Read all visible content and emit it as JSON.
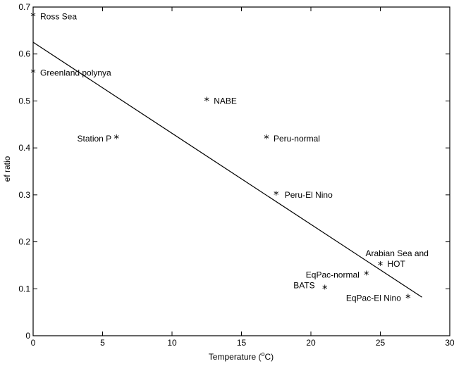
{
  "chart_data": {
    "type": "scatter",
    "title": "",
    "xlabel": "Temperature (°C)",
    "xlabel_parts": {
      "before": "Temperature (",
      "sup": "o",
      "after": "C)"
    },
    "ylabel": "ef ratio",
    "xlim": [
      0,
      30
    ],
    "ylim": [
      0,
      0.7
    ],
    "xticks": [
      "0",
      "5",
      "10",
      "15",
      "20",
      "25",
      "30"
    ],
    "yticks": [
      "0",
      "0.1",
      "0.2",
      "0.3",
      "0.4",
      "0.5",
      "0.6",
      "0.7"
    ],
    "grid": false,
    "marker": "*",
    "points": [
      {
        "label": "Ross Sea",
        "x": 0,
        "y": 0.68
      },
      {
        "label": "Greenland polynya",
        "x": 0,
        "y": 0.56
      },
      {
        "label": "NABE",
        "x": 12.5,
        "y": 0.5
      },
      {
        "label": "Station P",
        "x": 6,
        "y": 0.42
      },
      {
        "label": "Peru-normal",
        "x": 16.8,
        "y": 0.42
      },
      {
        "label": "Peru-El Nino",
        "x": 17.5,
        "y": 0.3
      },
      {
        "label": "Arabian Sea and HOT",
        "x": 25,
        "y": 0.15
      },
      {
        "label": "EqPac-normal",
        "x": 24,
        "y": 0.13
      },
      {
        "label": "BATS",
        "x": 21,
        "y": 0.1
      },
      {
        "label": "EqPac-El Nino",
        "x": 27,
        "y": 0.08
      }
    ],
    "regression_line": {
      "x": [
        0,
        28
      ],
      "y": [
        0.625,
        0.082
      ]
    }
  }
}
